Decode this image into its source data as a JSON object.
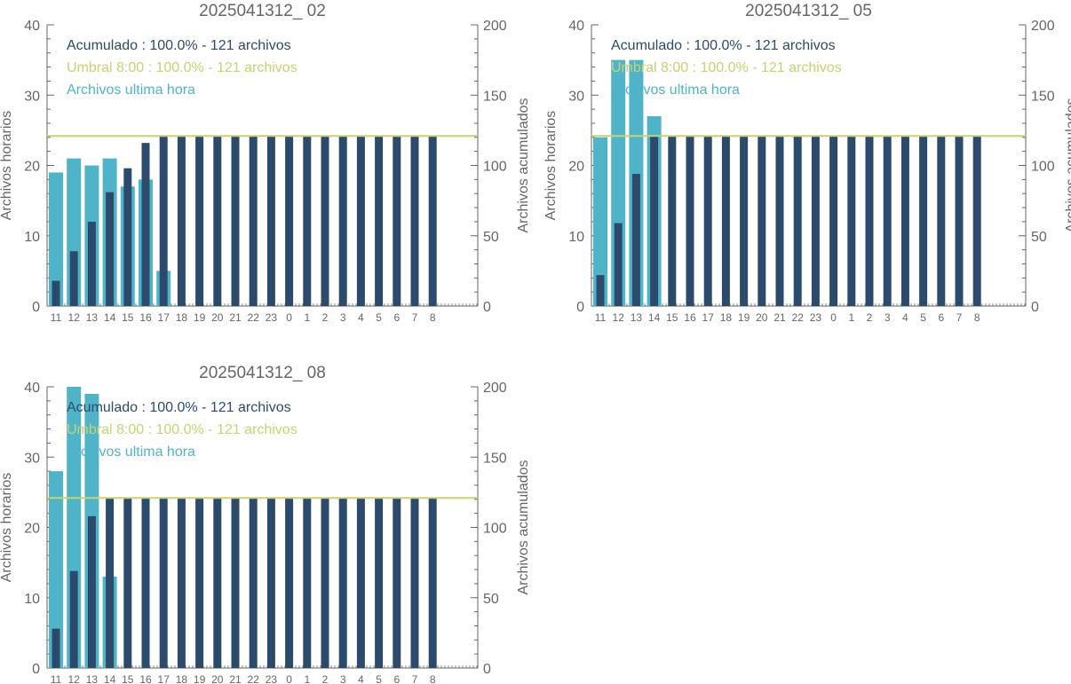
{
  "colors": {
    "hourly": "#50b4c8",
    "cumulative": "#2c4a6b",
    "threshold": "#c8d26e",
    "axis": "#666666",
    "text": "#666666"
  },
  "chart_data": [
    {
      "type": "bar",
      "title": "2025041312_ 02",
      "ylabel": "Archivos horarios",
      "y2label": "Archivos acumulados",
      "ylim": [
        0,
        40
      ],
      "y2lim": [
        0,
        200
      ],
      "yticks": [
        "0",
        "10",
        "20",
        "30",
        "40"
      ],
      "y2ticks": [
        "0",
        "50",
        "100",
        "150",
        "200"
      ],
      "categories": [
        "11",
        "12",
        "13",
        "14",
        "15",
        "16",
        "17",
        "18",
        "19",
        "20",
        "21",
        "22",
        "23",
        "0",
        "1",
        "2",
        "3",
        "4",
        "5",
        "6",
        "7",
        "8"
      ],
      "series": [
        {
          "name": "Archivos ultima hora",
          "axis": "left",
          "values": [
            19,
            21,
            20,
            21,
            17,
            18,
            5,
            0,
            0,
            0,
            0,
            0,
            0,
            0,
            0,
            0,
            0,
            0,
            0,
            0,
            0,
            0
          ]
        },
        {
          "name": "Acumulado",
          "axis": "right",
          "values": [
            18,
            39,
            60,
            81,
            98,
            116,
            121,
            121,
            121,
            121,
            121,
            121,
            121,
            121,
            121,
            121,
            121,
            121,
            121,
            121,
            121,
            121
          ]
        }
      ],
      "threshold": {
        "axis": "right",
        "value": 121
      },
      "legend": [
        {
          "text": "Acumulado : 100.0% - 121 archivos",
          "color": "#2c4a6b"
        },
        {
          "text": "Umbral 8:00 : 100.0% - 121 archivos",
          "color": "#c8d26e"
        },
        {
          "text": "Archivos ultima hora",
          "color": "#50b4c8"
        }
      ]
    },
    {
      "type": "bar",
      "title": "2025041312_ 05",
      "ylabel": "Archivos horarios",
      "y2label": "Archivos acumulados",
      "ylim": [
        0,
        40
      ],
      "y2lim": [
        0,
        200
      ],
      "yticks": [
        "0",
        "10",
        "20",
        "30",
        "40"
      ],
      "y2ticks": [
        "0",
        "50",
        "100",
        "150",
        "200"
      ],
      "categories": [
        "11",
        "12",
        "13",
        "14",
        "15",
        "16",
        "17",
        "18",
        "19",
        "20",
        "21",
        "22",
        "23",
        "0",
        "1",
        "2",
        "3",
        "4",
        "5",
        "6",
        "7",
        "8"
      ],
      "series": [
        {
          "name": "Archivos ultima hora",
          "axis": "left",
          "values": [
            24,
            35,
            35,
            27,
            0,
            0,
            0,
            0,
            0,
            0,
            0,
            0,
            0,
            0,
            0,
            0,
            0,
            0,
            0,
            0,
            0,
            0
          ]
        },
        {
          "name": "Acumulado",
          "axis": "right",
          "values": [
            22,
            59,
            94,
            121,
            121,
            121,
            121,
            121,
            121,
            121,
            121,
            121,
            121,
            121,
            121,
            121,
            121,
            121,
            121,
            121,
            121,
            121
          ]
        }
      ],
      "threshold": {
        "axis": "right",
        "value": 121
      },
      "legend": [
        {
          "text": "Acumulado : 100.0% - 121 archivos",
          "color": "#2c4a6b"
        },
        {
          "text": "Umbral 8:00 : 100.0% - 121 archivos",
          "color": "#c8d26e"
        },
        {
          "text": "Archivos ultima hora",
          "color": "#50b4c8"
        }
      ]
    },
    {
      "type": "bar",
      "title": "2025041312_ 08",
      "ylabel": "Archivos horarios",
      "y2label": "Archivos acumulados",
      "ylim": [
        0,
        40
      ],
      "y2lim": [
        0,
        200
      ],
      "yticks": [
        "0",
        "10",
        "20",
        "30",
        "40"
      ],
      "y2ticks": [
        "0",
        "50",
        "100",
        "150",
        "200"
      ],
      "categories": [
        "11",
        "12",
        "13",
        "14",
        "15",
        "16",
        "17",
        "18",
        "19",
        "20",
        "21",
        "22",
        "23",
        "0",
        "1",
        "2",
        "3",
        "4",
        "5",
        "6",
        "7",
        "8"
      ],
      "series": [
        {
          "name": "Archivos ultima hora",
          "axis": "left",
          "values": [
            28,
            41,
            39,
            13,
            0,
            0,
            0,
            0,
            0,
            0,
            0,
            0,
            0,
            0,
            0,
            0,
            0,
            0,
            0,
            0,
            0,
            0
          ]
        },
        {
          "name": "Acumulado",
          "axis": "right",
          "values": [
            28,
            69,
            108,
            121,
            121,
            121,
            121,
            121,
            121,
            121,
            121,
            121,
            121,
            121,
            121,
            121,
            121,
            121,
            121,
            121,
            121,
            121
          ]
        }
      ],
      "threshold": {
        "axis": "right",
        "value": 121
      },
      "legend": [
        {
          "text": "Acumulado : 100.0% - 121 archivos",
          "color": "#2c4a6b"
        },
        {
          "text": "Umbral 8:00 : 100.0% - 121 archivos",
          "color": "#c8d26e"
        },
        {
          "text": "Archivos ultima hora",
          "color": "#50b4c8"
        }
      ]
    }
  ]
}
